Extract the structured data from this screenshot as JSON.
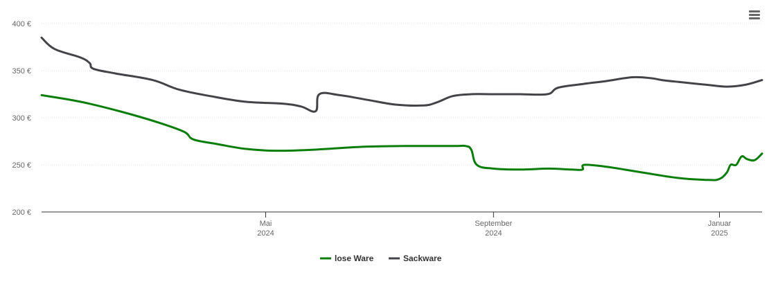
{
  "menu": {
    "icon": "hamburger-menu-icon"
  },
  "chart_data": {
    "type": "line",
    "title": "",
    "xlabel": "",
    "ylabel": "",
    "x_range": [
      "2024-01-01",
      "2025-01-24"
    ],
    "ylim": [
      200,
      400
    ],
    "y_ticks": [
      200,
      250,
      300,
      350,
      400
    ],
    "y_tick_labels": [
      "200 €",
      "250 €",
      "300 €",
      "350 €",
      "400 €"
    ],
    "x_ticks": [
      {
        "date": "2024-05-01",
        "month": "Mai",
        "year": "2024"
      },
      {
        "date": "2024-09-01",
        "month": "September",
        "year": "2024"
      },
      {
        "date": "2025-01-01",
        "month": "Januar",
        "year": "2025"
      }
    ],
    "grid": true,
    "legend_position": "bottom-center",
    "series": [
      {
        "name": "lose Ware",
        "color": "#0a7d0a",
        "points": [
          [
            "2024-01-01",
            324
          ],
          [
            "2024-01-22",
            317
          ],
          [
            "2024-02-12",
            307
          ],
          [
            "2024-03-04",
            295
          ],
          [
            "2024-03-18",
            285
          ],
          [
            "2024-03-23",
            277
          ],
          [
            "2024-04-05",
            272
          ],
          [
            "2024-04-20",
            267
          ],
          [
            "2024-05-06",
            265
          ],
          [
            "2024-05-26",
            266
          ],
          [
            "2024-06-20",
            269
          ],
          [
            "2024-07-15",
            270
          ],
          [
            "2024-08-10",
            270
          ],
          [
            "2024-08-17",
            270
          ],
          [
            "2024-08-20",
            266
          ],
          [
            "2024-08-23",
            250
          ],
          [
            "2024-09-01",
            246
          ],
          [
            "2024-09-15",
            245
          ],
          [
            "2024-10-01",
            246
          ],
          [
            "2024-10-13",
            245
          ],
          [
            "2024-10-19",
            245
          ],
          [
            "2024-10-20",
            250
          ],
          [
            "2024-11-01",
            248
          ],
          [
            "2024-11-20",
            242
          ],
          [
            "2024-12-10",
            236
          ],
          [
            "2024-12-26",
            234
          ],
          [
            "2025-01-01",
            235
          ],
          [
            "2025-01-05",
            242
          ],
          [
            "2025-01-07",
            250
          ],
          [
            "2025-01-10",
            250
          ],
          [
            "2025-01-13",
            259
          ],
          [
            "2025-01-16",
            256
          ],
          [
            "2025-01-20",
            255
          ],
          [
            "2025-01-24",
            262
          ]
        ]
      },
      {
        "name": "Sackware",
        "color": "#434348",
        "points": [
          [
            "2024-01-01",
            385
          ],
          [
            "2024-01-08",
            373
          ],
          [
            "2024-01-22",
            364
          ],
          [
            "2024-01-27",
            358
          ],
          [
            "2024-01-29",
            352
          ],
          [
            "2024-02-10",
            347
          ],
          [
            "2024-03-01",
            340
          ],
          [
            "2024-03-15",
            330
          ],
          [
            "2024-04-01",
            323
          ],
          [
            "2024-04-20",
            317
          ],
          [
            "2024-05-10",
            315
          ],
          [
            "2024-05-20",
            312
          ],
          [
            "2024-05-28",
            307
          ],
          [
            "2024-05-30",
            325
          ],
          [
            "2024-06-10",
            324
          ],
          [
            "2024-06-25",
            319
          ],
          [
            "2024-07-10",
            314
          ],
          [
            "2024-07-25",
            313
          ],
          [
            "2024-08-01",
            316
          ],
          [
            "2024-08-10",
            323
          ],
          [
            "2024-08-20",
            325
          ],
          [
            "2024-09-01",
            325
          ],
          [
            "2024-09-15",
            325
          ],
          [
            "2024-09-30",
            325
          ],
          [
            "2024-10-06",
            332
          ],
          [
            "2024-10-20",
            336
          ],
          [
            "2024-11-01",
            339
          ],
          [
            "2024-11-15",
            343
          ],
          [
            "2024-11-25",
            342
          ],
          [
            "2024-12-01",
            340
          ],
          [
            "2024-12-10",
            338
          ],
          [
            "2024-12-25",
            335
          ],
          [
            "2025-01-05",
            333
          ],
          [
            "2025-01-15",
            335
          ],
          [
            "2025-01-24",
            340
          ]
        ]
      }
    ]
  }
}
